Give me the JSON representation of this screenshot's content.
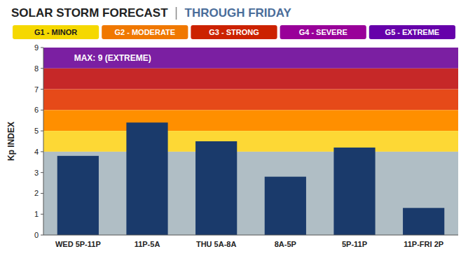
{
  "chart_data": {
    "type": "bar",
    "title": "SOLAR STORM FORECAST",
    "subtitle": "THROUGH FRIDAY",
    "categories": [
      "WED 5P-11P",
      "11P-5A",
      "THU 5A-8A",
      "8A-5P",
      "5P-11P",
      "11P-FRI 2P"
    ],
    "values": [
      3.8,
      5.4,
      4.5,
      2.8,
      4.2,
      1.3
    ],
    "color": "#1a3a6b",
    "ylim": [
      0,
      9
    ],
    "yticks": [
      0,
      1,
      2,
      3,
      4,
      5,
      6,
      7,
      8,
      9
    ],
    "ylabel": "Kp INDEX",
    "grid": false,
    "bands": [
      {
        "from": 8,
        "to": 9,
        "color": "#7b1fa2"
      },
      {
        "from": 7,
        "to": 8,
        "color": "#c62828"
      },
      {
        "from": 6,
        "to": 7,
        "color": "#e64a19"
      },
      {
        "from": 5,
        "to": 6,
        "color": "#ff8f00"
      },
      {
        "from": 4,
        "to": 5,
        "color": "#fdd835"
      },
      {
        "from": 0,
        "to": 4,
        "color": "#b0bec5"
      }
    ],
    "scale_labels": [
      {
        "label": "G1 - MINOR",
        "color": "#f5d800",
        "text_color": "#1a1a1a"
      },
      {
        "label": "G2 - MODERATE",
        "color": "#f07800",
        "text_color": "#ffffff"
      },
      {
        "label": "G3 - STRONG",
        "color": "#cc2200",
        "text_color": "#ffffff"
      },
      {
        "label": "G4 - SEVERE",
        "color": "#990099",
        "text_color": "#ffffff"
      },
      {
        "label": "G5 - EXTREME",
        "color": "#6600aa",
        "text_color": "#ffffff"
      }
    ],
    "annotations": [
      {
        "text": "MAX: 9 (EXTREME)",
        "y": 8.5
      }
    ]
  }
}
